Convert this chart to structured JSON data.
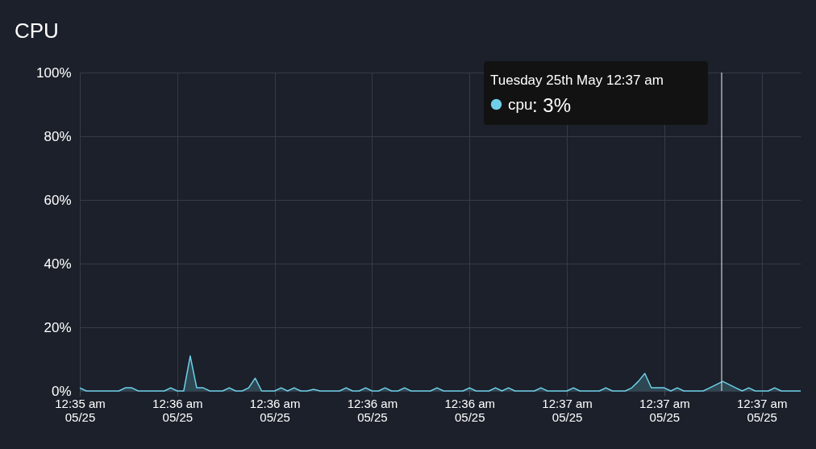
{
  "chart_data": {
    "type": "area",
    "title": "CPU",
    "categories": [
      "12:35 am\n05/25",
      null,
      null,
      null,
      null,
      null,
      null,
      null,
      null,
      null,
      null,
      null,
      null,
      null,
      null,
      "12:36 am\n05/25",
      null,
      null,
      null,
      null,
      null,
      null,
      null,
      null,
      null,
      null,
      null,
      null,
      null,
      null,
      "12:36 am\n05/25",
      null,
      null,
      null,
      null,
      null,
      null,
      null,
      null,
      null,
      null,
      null,
      null,
      null,
      null,
      "12:36 am\n05/25",
      null,
      null,
      null,
      null,
      null,
      null,
      null,
      null,
      null,
      null,
      null,
      null,
      null,
      null,
      "12:36 am\n05/25",
      null,
      null,
      null,
      null,
      null,
      null,
      null,
      null,
      null,
      null,
      null,
      null,
      null,
      null,
      "12:37 am\n05/25",
      null,
      null,
      null,
      null,
      null,
      null,
      null,
      null,
      null,
      null,
      null,
      null,
      null,
      null,
      "12:37 am\n05/25",
      null,
      null,
      null,
      null,
      null,
      null,
      null,
      null,
      null,
      null,
      null,
      null,
      null,
      null,
      "12:37 am\n05/25",
      null,
      null,
      null,
      null,
      null,
      null
    ],
    "series": [
      {
        "name": "cpu",
        "color": "#6fd0e8",
        "values": [
          1,
          0,
          0,
          0,
          0,
          0,
          0,
          1,
          1,
          0,
          0,
          0,
          0,
          0,
          1,
          0,
          0,
          11,
          1,
          1,
          0,
          0,
          0,
          1,
          0,
          0,
          1,
          4,
          0,
          0,
          0,
          1,
          0,
          1,
          0,
          0,
          0.5,
          0,
          0,
          0,
          0,
          1,
          0,
          0,
          1,
          0,
          0,
          1,
          0,
          0,
          1,
          0,
          0,
          0,
          0,
          1,
          0,
          0,
          0,
          0,
          1,
          0,
          0,
          0,
          1,
          0,
          1,
          0,
          0,
          0,
          0,
          1,
          0,
          0,
          0,
          0,
          1,
          0,
          0,
          0,
          0,
          1,
          0,
          0,
          0,
          1,
          3,
          5.5,
          1,
          1,
          1,
          0,
          1,
          0,
          0,
          0,
          0,
          1,
          2,
          3,
          2,
          1,
          0,
          1,
          0,
          0,
          0,
          1,
          0,
          0,
          0,
          0
        ]
      }
    ],
    "ylim": [
      0,
      100
    ],
    "yticks": [
      {
        "value": 0,
        "label": "0%"
      },
      {
        "value": 20,
        "label": "20%"
      },
      {
        "value": 40,
        "label": "40%"
      },
      {
        "value": 60,
        "label": "60%"
      },
      {
        "value": 80,
        "label": "80%"
      },
      {
        "value": 100,
        "label": "100%"
      }
    ],
    "grid": true,
    "annotations": [
      "Tuesday 25th May 12:37 am",
      ": 3%"
    ]
  }
}
